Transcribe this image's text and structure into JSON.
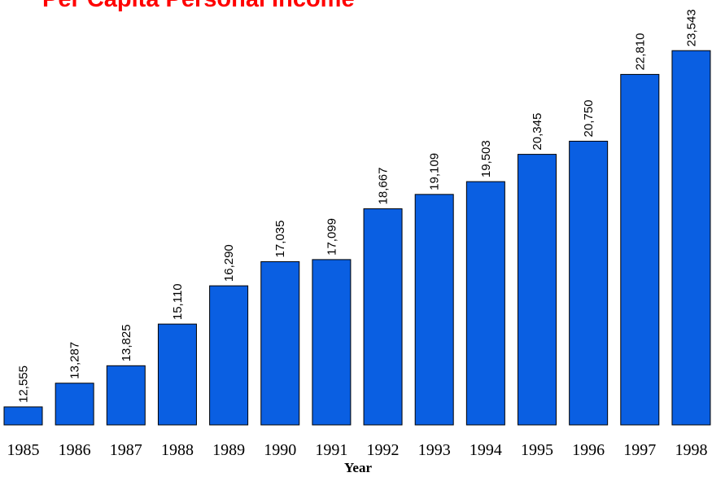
{
  "chart_data": {
    "type": "bar",
    "title": "Per Capita Personal Income",
    "x_label": "Year",
    "categories": [
      "1985",
      "1986",
      "1987",
      "1988",
      "1989",
      "1990",
      "1991",
      "1992",
      "1993",
      "1994",
      "1995",
      "1996",
      "1997",
      "1998"
    ],
    "values": [
      12555,
      13287,
      13825,
      15110,
      16290,
      17035,
      17099,
      18667,
      19109,
      19503,
      20345,
      20750,
      22810,
      23543
    ],
    "value_labels": [
      "12,555",
      "13,287",
      "13,825",
      "15,110",
      "16,290",
      "17,035",
      "17,099",
      "18,667",
      "19,109",
      "19,503",
      "20,345",
      "20,750",
      "22,810",
      "23,543"
    ],
    "color": "#0a5fe2",
    "ylim": [
      12000,
      24000
    ]
  }
}
